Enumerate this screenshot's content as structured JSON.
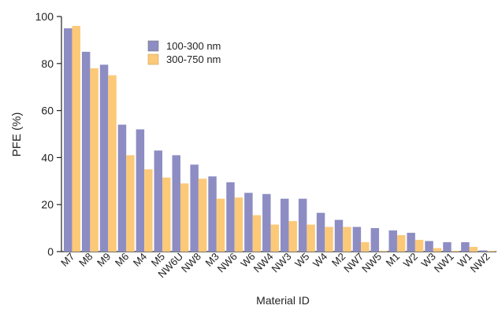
{
  "chart_data": {
    "type": "bar",
    "title": "",
    "xlabel": "Material ID",
    "ylabel": "PFE (%)",
    "ylim": [
      0,
      100
    ],
    "yticks": [
      0,
      20,
      40,
      60,
      80,
      100
    ],
    "grid": false,
    "legend_position": "top-left",
    "categories": [
      "M7",
      "M8",
      "M9",
      "M6",
      "M4",
      "M5",
      "NW6U",
      "NW8",
      "M3",
      "NW6",
      "W6",
      "NW4",
      "NW3",
      "W5",
      "W4",
      "M2",
      "NW7",
      "NW5",
      "M1",
      "W2",
      "W3",
      "NW1",
      "W1",
      "NW2"
    ],
    "series": [
      {
        "name": "100-300 nm",
        "color": "#8d8dc4",
        "values": [
          95,
          85,
          79.5,
          54,
          52,
          43,
          41,
          37,
          32,
          29.5,
          25,
          24.5,
          22.5,
          22.5,
          16.5,
          13.5,
          10.5,
          10,
          9,
          8,
          4.5,
          4,
          4,
          0.5
        ]
      },
      {
        "name": "300-750 nm",
        "color": "#fcc978",
        "values": [
          96,
          78,
          75,
          41,
          35,
          31.5,
          29,
          31,
          22.5,
          23,
          15.5,
          11.5,
          13,
          11.5,
          10.5,
          10.5,
          4,
          0.3,
          7,
          5,
          1.5,
          0.3,
          2,
          0.3
        ]
      }
    ]
  }
}
